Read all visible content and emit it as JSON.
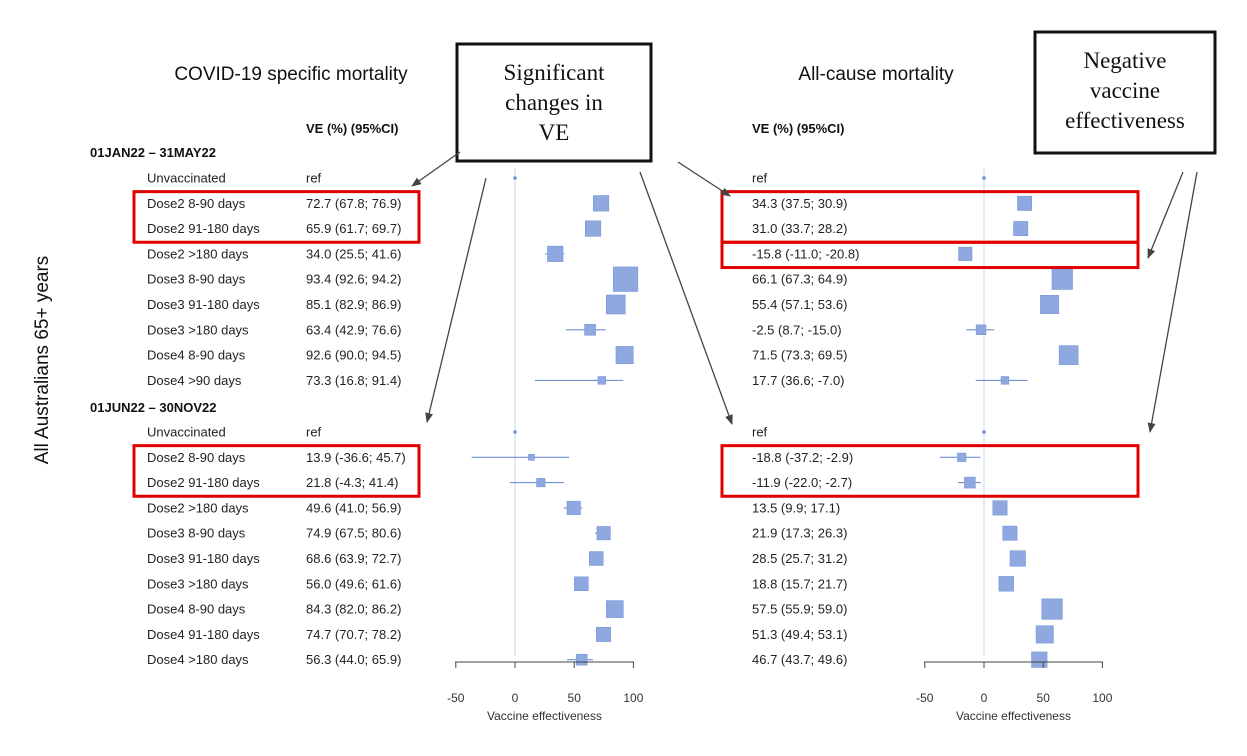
{
  "colors": {
    "marker": "#8fa8e0",
    "marker_edge": "#6f8fd6",
    "ci_line": "#6f8fd6",
    "zero_line": "#c8d3ec",
    "highlight_box": "#e00000",
    "axis": "#444444"
  },
  "y_axis_label": "All Australians 65+ years",
  "annotations": [
    {
      "id": "significant",
      "lines": [
        "Significant",
        "changes in",
        "VE"
      ]
    },
    {
      "id": "negative",
      "lines": [
        "Negative",
        "vaccine",
        "effectiveness"
      ]
    }
  ],
  "panels": [
    {
      "id": "covid",
      "title": "COVID-19 specific mortality",
      "column_header": "VE (%) (95%CI)"
    },
    {
      "id": "allcause",
      "title": "All-cause mortality",
      "column_header": "VE (%) (95%CI)"
    }
  ],
  "chart_data": [
    {
      "type": "scatter",
      "title": "COVID-19 specific mortality",
      "xlabel": "Vaccine effectiveness",
      "ylabel": "All Australians 65+ years",
      "xticks": [
        -50,
        0,
        50,
        100
      ],
      "xlim": [
        -50,
        100
      ],
      "periods": [
        {
          "label": "01JAN22 – 31MAY22",
          "rows": [
            {
              "group": "Unvaccinated",
              "ve_text": "ref",
              "ve": 0,
              "lo": null,
              "hi": null,
              "weight": 0,
              "highlight": false
            },
            {
              "group": "Dose2 8-90 days",
              "ve_text": "72.7 (67.8; 76.9)",
              "ve": 72.7,
              "lo": 67.8,
              "hi": 76.9,
              "weight": 2,
              "highlight": true
            },
            {
              "group": "Dose2 91-180 days",
              "ve_text": "65.9 (61.7; 69.7)",
              "ve": 65.9,
              "lo": 61.7,
              "hi": 69.7,
              "weight": 2,
              "highlight": true
            },
            {
              "group": "Dose2 >180 days",
              "ve_text": "34.0 (25.5; 41.6)",
              "ve": 34.0,
              "lo": 25.5,
              "hi": 41.6,
              "weight": 2,
              "highlight": false
            },
            {
              "group": "Dose3 8-90 days",
              "ve_text": "93.4 (92.6; 94.2)",
              "ve": 93.4,
              "lo": 92.6,
              "hi": 94.2,
              "weight": 5,
              "highlight": false
            },
            {
              "group": "Dose3 91-180 days",
              "ve_text": "85.1 (82.9; 86.9)",
              "ve": 85.1,
              "lo": 82.9,
              "hi": 86.9,
              "weight": 3,
              "highlight": false
            },
            {
              "group": "Dose3 >180 days",
              "ve_text": "63.4 (42.9; 76.6)",
              "ve": 63.4,
              "lo": 42.9,
              "hi": 76.6,
              "weight": 1,
              "highlight": false
            },
            {
              "group": "Dose4 8-90 days",
              "ve_text": "92.6 (90.0; 94.5)",
              "ve": 92.6,
              "lo": 90.0,
              "hi": 94.5,
              "weight": 2.5,
              "highlight": false
            },
            {
              "group": "Dose4 >90 days",
              "ve_text": "73.3 (16.8; 91.4)",
              "ve": 73.3,
              "lo": 16.8,
              "hi": 91.4,
              "weight": 0.5,
              "highlight": false
            }
          ]
        },
        {
          "label": "01JUN22 – 30NOV22",
          "rows": [
            {
              "group": "Unvaccinated",
              "ve_text": "ref",
              "ve": 0,
              "lo": null,
              "hi": null,
              "weight": 0,
              "highlight": false
            },
            {
              "group": "Dose2 8-90 days",
              "ve_text": "13.9 (-36.6; 45.7)",
              "ve": 13.9,
              "lo": -36.6,
              "hi": 45.7,
              "weight": 0.3,
              "highlight": true
            },
            {
              "group": "Dose2 91-180 days",
              "ve_text": "21.8 (-4.3; 41.4)",
              "ve": 21.8,
              "lo": -4.3,
              "hi": 41.4,
              "weight": 0.6,
              "highlight": true
            },
            {
              "group": "Dose2 >180 days",
              "ve_text": "49.6 (41.0; 56.9)",
              "ve": 49.6,
              "lo": 41.0,
              "hi": 56.9,
              "weight": 1.5,
              "highlight": false
            },
            {
              "group": "Dose3 8-90 days",
              "ve_text": "74.9 (67.5; 80.6)",
              "ve": 74.9,
              "lo": 67.5,
              "hi": 80.6,
              "weight": 1.5,
              "highlight": false
            },
            {
              "group": "Dose3 91-180 days",
              "ve_text": "68.6 (63.9; 72.7)",
              "ve": 68.6,
              "lo": 63.9,
              "hi": 72.7,
              "weight": 1.6,
              "highlight": false
            },
            {
              "group": "Dose3 >180 days",
              "ve_text": "56.0 (49.6; 61.6)",
              "ve": 56.0,
              "lo": 49.6,
              "hi": 61.6,
              "weight": 1.6,
              "highlight": false
            },
            {
              "group": "Dose4 8-90 days",
              "ve_text": "84.3 (82.0; 86.2)",
              "ve": 84.3,
              "lo": 82.0,
              "hi": 86.2,
              "weight": 2.4,
              "highlight": false
            },
            {
              "group": "Dose4 91-180 days",
              "ve_text": "74.7 (70.7; 78.2)",
              "ve": 74.7,
              "lo": 70.7,
              "hi": 78.2,
              "weight": 1.7,
              "highlight": false
            },
            {
              "group": "Dose4 >180 days",
              "ve_text": "56.3 (44.0; 65.9)",
              "ve": 56.3,
              "lo": 44.0,
              "hi": 65.9,
              "weight": 1,
              "highlight": false
            }
          ]
        }
      ]
    },
    {
      "type": "scatter",
      "title": "All-cause mortality",
      "xlabel": "Vaccine effectiveness",
      "ylabel": "",
      "xticks": [
        -50,
        0,
        50,
        100
      ],
      "xlim": [
        -50,
        100
      ],
      "periods": [
        {
          "label": "01JAN22 – 31MAY22",
          "rows": [
            {
              "group": "Unvaccinated",
              "ve_text": "ref",
              "ve": 0,
              "lo": null,
              "hi": null,
              "weight": 0,
              "highlight": false
            },
            {
              "group": "Dose2 8-90 days",
              "ve_text": "34.3 (37.5; 30.9)",
              "ve": 34.3,
              "lo": 30.9,
              "hi": 37.5,
              "weight": 1.7,
              "highlight": true
            },
            {
              "group": "Dose2 91-180 days",
              "ve_text": "31.0 (33.7; 28.2)",
              "ve": 31.0,
              "lo": 28.2,
              "hi": 33.7,
              "weight": 1.7,
              "highlight": true
            },
            {
              "group": "Dose2 >180 days",
              "ve_text": "-15.8 (-11.0; -20.8)",
              "ve": -15.8,
              "lo": -20.8,
              "hi": -11.0,
              "weight": 1.5,
              "highlight": true
            },
            {
              "group": "Dose3 8-90 days",
              "ve_text": "66.1 (67.3; 64.9)",
              "ve": 66.1,
              "lo": 64.9,
              "hi": 67.3,
              "weight": 3.5,
              "highlight": false
            },
            {
              "group": "Dose3 91-180 days",
              "ve_text": "55.4 (57.1; 53.6)",
              "ve": 55.4,
              "lo": 53.6,
              "hi": 57.1,
              "weight": 2.8,
              "highlight": false
            },
            {
              "group": "Dose3 >180 days",
              "ve_text": "-2.5 (8.7; -15.0)",
              "ve": -2.5,
              "lo": -15.0,
              "hi": 8.7,
              "weight": 0.8,
              "highlight": false
            },
            {
              "group": "Dose4 8-90 days",
              "ve_text": "71.5 (73.3; 69.5)",
              "ve": 71.5,
              "lo": 69.5,
              "hi": 73.3,
              "weight": 3,
              "highlight": false
            },
            {
              "group": "Dose4 >90 days",
              "ve_text": "17.7 (36.6; -7.0)",
              "ve": 17.7,
              "lo": -7.0,
              "hi": 36.6,
              "weight": 0.5,
              "highlight": false
            }
          ]
        },
        {
          "label": "01JUN22 – 30NOV22",
          "rows": [
            {
              "group": "Unvaccinated",
              "ve_text": "ref",
              "ve": 0,
              "lo": null,
              "hi": null,
              "weight": 0,
              "highlight": false
            },
            {
              "group": "Dose2 8-90 days",
              "ve_text": "-18.8 (-37.2; -2.9)",
              "ve": -18.8,
              "lo": -37.2,
              "hi": -2.9,
              "weight": 0.6,
              "highlight": true
            },
            {
              "group": "Dose2 91-180 days",
              "ve_text": "-11.9 (-22.0; -2.7)",
              "ve": -11.9,
              "lo": -22.0,
              "hi": -2.7,
              "weight": 1,
              "highlight": true
            },
            {
              "group": "Dose2 >180 days",
              "ve_text": "13.5 (9.9; 17.1)",
              "ve": 13.5,
              "lo": 9.9,
              "hi": 17.1,
              "weight": 1.7,
              "highlight": false
            },
            {
              "group": "Dose3 8-90 days",
              "ve_text": "21.9 (17.3; 26.3)",
              "ve": 21.9,
              "lo": 17.3,
              "hi": 26.3,
              "weight": 1.7,
              "highlight": false
            },
            {
              "group": "Dose3 91-180 days",
              "ve_text": "28.5 (25.7; 31.2)",
              "ve": 28.5,
              "lo": 25.7,
              "hi": 31.2,
              "weight": 2,
              "highlight": false
            },
            {
              "group": "Dose3 >180 days",
              "ve_text": "18.8 (15.7; 21.7)",
              "ve": 18.8,
              "lo": 15.7,
              "hi": 21.7,
              "weight": 1.8,
              "highlight": false
            },
            {
              "group": "Dose4 8-90 days",
              "ve_text": "57.5 (55.9; 59.0)",
              "ve": 57.5,
              "lo": 55.9,
              "hi": 59.0,
              "weight": 3.5,
              "highlight": false
            },
            {
              "group": "Dose4 91-180 days",
              "ve_text": "51.3 (49.4; 53.1)",
              "ve": 51.3,
              "lo": 49.4,
              "hi": 53.1,
              "weight": 2.5,
              "highlight": false
            },
            {
              "group": "Dose4 >180 days",
              "ve_text": "46.7 (43.7; 49.6)",
              "ve": 46.7,
              "lo": 43.7,
              "hi": 49.6,
              "weight": 2,
              "highlight": false
            }
          ]
        }
      ]
    }
  ]
}
